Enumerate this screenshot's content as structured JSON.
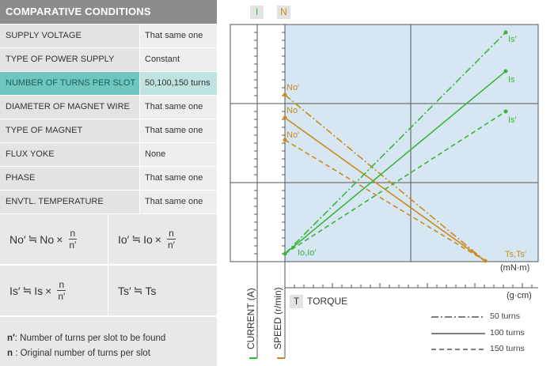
{
  "conditions": {
    "title": "COMPARATIVE CONDITIONS",
    "rows": [
      {
        "label": "SUPPLY VOLTAGE",
        "value": "That same one"
      },
      {
        "label": "TYPE OF POWER SUPPLY",
        "value": "Constant"
      },
      {
        "label": "NUMBER OF TURNS PER SLOT",
        "value": "50,100,150 turns"
      },
      {
        "label": "DIAMETER OF MAGNET WIRE",
        "value": "That same one"
      },
      {
        "label": "TYPE OF MAGNET",
        "value": "That same one"
      },
      {
        "label": "FLUX YOKE",
        "value": "None"
      },
      {
        "label": "PHASE",
        "value": "That same one"
      },
      {
        "label": "ENVTL. TEMPERATURE",
        "value": "That same one"
      }
    ]
  },
  "formulas": {
    "f1": {
      "lhs": "No′",
      "op": "≒",
      "rhs": "No",
      "times": "×",
      "num": "n",
      "den": "n′"
    },
    "f2": {
      "lhs": "Io′",
      "op": "≒",
      "rhs": "Io",
      "times": "×",
      "num": "n",
      "den": "n′"
    },
    "f3": {
      "lhs": "Is′",
      "op": "≒",
      "rhs": "Is",
      "times": "×",
      "num": "n",
      "den": "n′"
    },
    "f4": {
      "lhs": "Ts′",
      "op": "≒",
      "rhs": "Ts"
    }
  },
  "notes": {
    "n_prime_key": "n′",
    "n_prime_text": ": Number of turns per slot to be found",
    "n_key": "n",
    "n_text": " : Original number of turns per slot"
  },
  "graph": {
    "current_tag": "I",
    "speed_tag": "N",
    "torque_tag": "T",
    "torque_label": "TORQUE",
    "current_axis_label": "CURRENT (A)",
    "speed_axis_label": "SPEED (r/min)",
    "unit_mnm": "(mN·m)",
    "unit_gcm": "(g·cm)",
    "labels": {
      "is_50": "Is′",
      "is_100": "Is",
      "is_150": "Is′",
      "no_50": "No′",
      "no_100": "No",
      "no_150": "No′",
      "io": "Io,Io′",
      "ts": "Ts,Ts′"
    },
    "legend": [
      {
        "label": "50 turns",
        "style": "dash-dot"
      },
      {
        "label": "100 turns",
        "style": "solid"
      },
      {
        "label": "150 turns",
        "style": "dashed"
      }
    ],
    "colors": {
      "current": "#3ab53a",
      "speed": "#c98a1a",
      "plot_bg": "#d6e6f3"
    }
  }
}
